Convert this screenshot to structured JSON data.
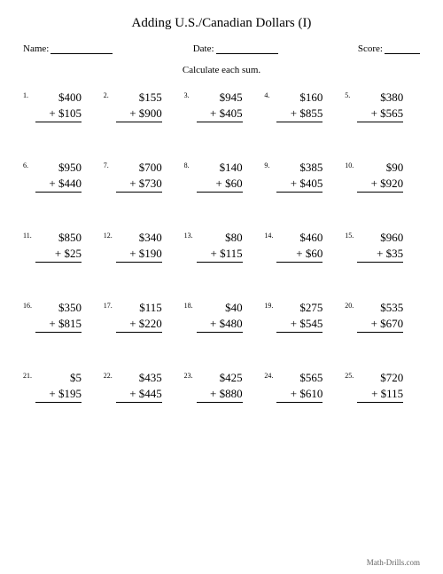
{
  "title": "Adding U.S./Canadian Dollars (I)",
  "header": {
    "name_label": "Name:",
    "date_label": "Date:",
    "score_label": "Score:"
  },
  "instructions": "Calculate each sum.",
  "problems": [
    {
      "n": "1.",
      "a": "$400",
      "b": "+ $105"
    },
    {
      "n": "2.",
      "a": "$155",
      "b": "+ $900"
    },
    {
      "n": "3.",
      "a": "$945",
      "b": "+ $405"
    },
    {
      "n": "4.",
      "a": "$160",
      "b": "+ $855"
    },
    {
      "n": "5.",
      "a": "$380",
      "b": "+ $565"
    },
    {
      "n": "6.",
      "a": "$950",
      "b": "+ $440"
    },
    {
      "n": "7.",
      "a": "$700",
      "b": "+ $730"
    },
    {
      "n": "8.",
      "a": "$140",
      "b": "+ $60"
    },
    {
      "n": "9.",
      "a": "$385",
      "b": "+ $405"
    },
    {
      "n": "10.",
      "a": "$90",
      "b": "+ $920"
    },
    {
      "n": "11.",
      "a": "$850",
      "b": "+ $25"
    },
    {
      "n": "12.",
      "a": "$340",
      "b": "+ $190"
    },
    {
      "n": "13.",
      "a": "$80",
      "b": "+ $115"
    },
    {
      "n": "14.",
      "a": "$460",
      "b": "+ $60"
    },
    {
      "n": "15.",
      "a": "$960",
      "b": "+ $35"
    },
    {
      "n": "16.",
      "a": "$350",
      "b": "+ $815"
    },
    {
      "n": "17.",
      "a": "$115",
      "b": "+ $220"
    },
    {
      "n": "18.",
      "a": "$40",
      "b": "+ $480"
    },
    {
      "n": "19.",
      "a": "$275",
      "b": "+ $545"
    },
    {
      "n": "20.",
      "a": "$535",
      "b": "+ $670"
    },
    {
      "n": "21.",
      "a": "$5",
      "b": "+ $195"
    },
    {
      "n": "22.",
      "a": "$435",
      "b": "+ $445"
    },
    {
      "n": "23.",
      "a": "$425",
      "b": "+ $880"
    },
    {
      "n": "24.",
      "a": "$565",
      "b": "+ $610"
    },
    {
      "n": "25.",
      "a": "$720",
      "b": "+ $115"
    }
  ],
  "footer": "Math-Drills.com",
  "style": {
    "name_underline_width": 70,
    "date_underline_width": 70,
    "score_underline_width": 40
  }
}
